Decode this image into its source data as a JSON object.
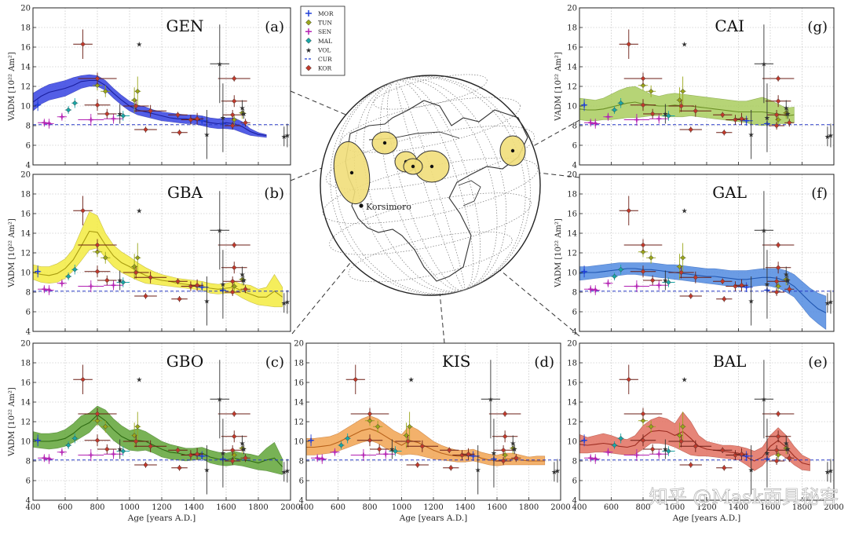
{
  "axis": {
    "ylabel": "VADM [10²² Am²]",
    "xlabel": "Age [years A.D.]",
    "x_ticks": [
      400,
      600,
      800,
      1000,
      1200,
      1400,
      1600,
      1800,
      2000
    ],
    "y_ticks": [
      4,
      6,
      8,
      10,
      12,
      14,
      16,
      18,
      20
    ],
    "xlim": [
      400,
      2000
    ],
    "ylim": [
      4,
      20
    ]
  },
  "legend": {
    "placement": "top-center",
    "entries": [
      {
        "name": "MOR",
        "color": "#1f3fd8",
        "marker": "cross"
      },
      {
        "name": "TUN",
        "color": "#9aa61a",
        "marker": "diamond"
      },
      {
        "name": "SEN",
        "color": "#b21fb2",
        "marker": "cross"
      },
      {
        "name": "MAL",
        "color": "#1aa6a6",
        "marker": "diamond"
      },
      {
        "name": "VOL",
        "color": "#2b2b2b",
        "marker": "star"
      },
      {
        "name": "CUR",
        "color": "#1f3fd8",
        "marker": "dash"
      },
      {
        "name": "KOR",
        "color": "#c0392b",
        "marker": "diamond"
      }
    ]
  },
  "globe": {
    "label": "Korsimoro"
  },
  "watermark": "知乎 @Mask面具秘客",
  "reference_vadm": 8.1,
  "points": [
    {
      "site": "MOR",
      "x": 430,
      "y": 10.1,
      "ex": 20,
      "ey": 0.6
    },
    {
      "site": "MOR",
      "x": 1450,
      "y": 8.5,
      "ex": 40,
      "ey": 0.5
    },
    {
      "site": "MOR",
      "x": 1580,
      "y": 8.2,
      "ex": 20,
      "ey": 0.5
    },
    {
      "site": "SEN",
      "x": 470,
      "y": 8.3,
      "ex": 40,
      "ey": 0.4
    },
    {
      "site": "SEN",
      "x": 500,
      "y": 8.2,
      "ex": 30,
      "ey": 0.5
    },
    {
      "site": "SEN",
      "x": 580,
      "y": 8.9,
      "ex": 30,
      "ey": 0.4
    },
    {
      "site": "SEN",
      "x": 760,
      "y": 8.6,
      "ex": 80,
      "ey": 0.6
    },
    {
      "site": "SEN",
      "x": 900,
      "y": 8.7,
      "ex": 60,
      "ey": 0.5
    },
    {
      "site": "MAL",
      "x": 620,
      "y": 9.6,
      "ex": 20,
      "ey": 0.4
    },
    {
      "site": "MAL",
      "x": 660,
      "y": 10.3,
      "ex": 20,
      "ey": 0.5
    },
    {
      "site": "MAL",
      "x": 960,
      "y": 9.0,
      "ex": 40,
      "ey": 0.5
    },
    {
      "site": "TUN",
      "x": 800,
      "y": 12.1,
      "ex": 30,
      "ey": 0.5
    },
    {
      "site": "TUN",
      "x": 850,
      "y": 11.5,
      "ex": 30,
      "ey": 0.6
    },
    {
      "site": "TUN",
      "x": 1030,
      "y": 10.6,
      "ex": 20,
      "ey": 1.3
    },
    {
      "site": "TUN",
      "x": 1050,
      "y": 11.5,
      "ex": 20,
      "ey": 1.5
    },
    {
      "site": "TUN",
      "x": 1650,
      "y": 8.6,
      "ex": 20,
      "ey": 0.5
    },
    {
      "site": "TUN",
      "x": 1700,
      "y": 9.3,
      "ex": 20,
      "ey": 0.6
    },
    {
      "site": "KOR",
      "x": 710,
      "y": 16.3,
      "ex": 60,
      "ey": 1.5
    },
    {
      "site": "KOR",
      "x": 800,
      "y": 12.8,
      "ex": 120,
      "ey": 0.6
    },
    {
      "site": "KOR",
      "x": 800,
      "y": 10.1,
      "ex": 80,
      "ey": 0.6
    },
    {
      "site": "KOR",
      "x": 860,
      "y": 9.2,
      "ex": 60,
      "ey": 0.5
    },
    {
      "site": "KOR",
      "x": 1040,
      "y": 10.0,
      "ex": 80,
      "ey": 0.6
    },
    {
      "site": "KOR",
      "x": 1130,
      "y": 9.5,
      "ex": 100,
      "ey": 0.6
    },
    {
      "site": "KOR",
      "x": 1100,
      "y": 7.6,
      "ex": 70,
      "ey": 0.3
    },
    {
      "site": "KOR",
      "x": 1300,
      "y": 9.1,
      "ex": 60,
      "ey": 0.3
    },
    {
      "site": "KOR",
      "x": 1310,
      "y": 7.3,
      "ex": 50,
      "ey": 0.3
    },
    {
      "site": "KOR",
      "x": 1380,
      "y": 8.6,
      "ex": 60,
      "ey": 0.5
    },
    {
      "site": "KOR",
      "x": 1420,
      "y": 8.7,
      "ex": 40,
      "ey": 0.6
    },
    {
      "site": "KOR",
      "x": 1650,
      "y": 12.8,
      "ex": 100,
      "ey": 0.3
    },
    {
      "site": "KOR",
      "x": 1650,
      "y": 10.5,
      "ex": 80,
      "ey": 0.6
    },
    {
      "site": "KOR",
      "x": 1640,
      "y": 9.1,
      "ex": 60,
      "ey": 0.5
    },
    {
      "site": "KOR",
      "x": 1640,
      "y": 8.0,
      "ex": 50,
      "ey": 0.4
    },
    {
      "site": "KOR",
      "x": 1720,
      "y": 8.3,
      "ex": 30,
      "ey": 0.4
    },
    {
      "site": "VOL",
      "x": 1060,
      "y": 16.3,
      "ex": 0,
      "ey": 0
    },
    {
      "site": "VOL",
      "x": 940,
      "y": 9.2,
      "ex": 0,
      "ey": 1.0
    },
    {
      "site": "VOL",
      "x": 1480,
      "y": 7.1,
      "ex": 0,
      "ey": 2.5
    },
    {
      "site": "VOL",
      "x": 1560,
      "y": 14.3,
      "ex": 60,
      "ey": 4.0
    },
    {
      "site": "VOL",
      "x": 1580,
      "y": 8.8,
      "ex": 0,
      "ey": 3.5
    },
    {
      "site": "VOL",
      "x": 1700,
      "y": 9.8,
      "ex": 0,
      "ey": 0.8
    },
    {
      "site": "VOL",
      "x": 1710,
      "y": 9.2,
      "ex": 0,
      "ey": 0.5
    },
    {
      "site": "VOL",
      "x": 1960,
      "y": 6.9,
      "ex": 0,
      "ey": 1.0
    },
    {
      "site": "VOL",
      "x": 1980,
      "y": 7.0,
      "ex": 0,
      "ey": 1.2
    }
  ],
  "panels": [
    {
      "id": "GEN",
      "letter": "(a)",
      "color": "#2d3be0",
      "line": "#1b1f9e",
      "x": [
        400,
        450,
        500,
        550,
        600,
        650,
        700,
        750,
        800,
        850,
        900,
        950,
        1000,
        1050,
        1100,
        1150,
        1200,
        1250,
        1300,
        1350,
        1400,
        1450,
        1500,
        1550,
        1600,
        1650,
        1700,
        1750,
        1800,
        1850
      ],
      "lower": [
        9.5,
        10.2,
        10.6,
        10.8,
        11.0,
        11.4,
        11.8,
        12.0,
        12.0,
        11.6,
        10.8,
        10.1,
        9.5,
        9.1,
        8.9,
        8.7,
        8.5,
        8.4,
        8.3,
        8.2,
        8.2,
        8.0,
        7.8,
        7.7,
        7.7,
        7.6,
        7.3,
        7.0,
        6.9,
        6.8
      ],
      "upper": [
        11.3,
        11.8,
        12.2,
        12.4,
        12.6,
        12.9,
        13.1,
        13.2,
        13.1,
        12.6,
        11.8,
        11.1,
        10.5,
        10.1,
        9.9,
        9.6,
        9.4,
        9.3,
        9.2,
        9.1,
        9.1,
        9.0,
        8.8,
        8.7,
        8.8,
        8.8,
        8.4,
        7.7,
        7.3,
        7.1
      ],
      "mean": [
        10.4,
        11.0,
        11.4,
        11.6,
        11.8,
        12.1,
        12.5,
        12.6,
        12.6,
        12.1,
        11.3,
        10.6,
        10.0,
        9.6,
        9.4,
        9.2,
        9.0,
        8.8,
        8.7,
        8.7,
        8.6,
        8.5,
        8.3,
        8.2,
        8.3,
        8.2,
        7.9,
        7.4,
        7.1,
        7.0
      ]
    },
    {
      "id": "GBA",
      "letter": "(b)",
      "color": "#f3ea38",
      "line": "#a89c10",
      "x": [
        400,
        450,
        500,
        550,
        600,
        650,
        700,
        750,
        800,
        850,
        900,
        950,
        1000,
        1050,
        1100,
        1150,
        1200,
        1250,
        1300,
        1350,
        1400,
        1450,
        1500,
        1550,
        1600,
        1650,
        1700,
        1750,
        1800,
        1850,
        1900,
        1950
      ],
      "lower": [
        9.3,
        9.0,
        8.9,
        9.0,
        9.4,
        10.2,
        11.2,
        12.3,
        12.5,
        11.5,
        10.6,
        10.0,
        9.6,
        9.2,
        8.9,
        8.8,
        8.7,
        8.6,
        8.5,
        8.4,
        8.3,
        8.2,
        7.9,
        7.8,
        7.9,
        7.9,
        7.4,
        7.0,
        6.7,
        6.6,
        6.5,
        6.5
      ],
      "upper": [
        10.8,
        10.6,
        10.6,
        10.9,
        11.4,
        12.4,
        14.3,
        16.2,
        15.8,
        14.0,
        12.8,
        12.1,
        11.6,
        11.0,
        10.5,
        10.1,
        9.8,
        9.6,
        9.4,
        9.3,
        9.2,
        9.1,
        8.9,
        8.8,
        8.9,
        9.1,
        8.8,
        8.7,
        8.3,
        8.5,
        9.8,
        8.5
      ],
      "mean": [
        10.0,
        9.8,
        9.7,
        9.9,
        10.4,
        11.3,
        12.7,
        14.2,
        14.1,
        12.8,
        11.7,
        11.0,
        10.6,
        10.1,
        9.7,
        9.4,
        9.2,
        9.1,
        8.9,
        8.8,
        8.7,
        8.6,
        8.4,
        8.3,
        8.4,
        8.5,
        8.1,
        7.8,
        7.5,
        7.5,
        8.1,
        7.5
      ]
    },
    {
      "id": "GBO",
      "letter": "(c)",
      "color": "#5aa12f",
      "line": "#2e6b12",
      "x": [
        400,
        450,
        500,
        550,
        600,
        650,
        700,
        750,
        800,
        850,
        900,
        950,
        1000,
        1050,
        1100,
        1150,
        1200,
        1250,
        1300,
        1350,
        1400,
        1450,
        1500,
        1550,
        1600,
        1650,
        1700,
        1750,
        1800,
        1850,
        1900,
        1950
      ],
      "lower": [
        9.4,
        9.3,
        9.2,
        9.3,
        9.5,
        9.9,
        10.4,
        10.9,
        11.8,
        11.0,
        10.1,
        9.5,
        9.1,
        9.0,
        9.1,
        8.8,
        8.4,
        8.2,
        8.1,
        8.0,
        8.1,
        8.2,
        7.8,
        7.6,
        7.5,
        7.6,
        7.5,
        7.3,
        7.1,
        7.0,
        6.8,
        6.6
      ],
      "upper": [
        11.0,
        10.8,
        10.8,
        10.9,
        11.2,
        11.8,
        12.6,
        12.9,
        13.6,
        13.2,
        12.3,
        11.6,
        11.1,
        11.3,
        11.0,
        10.5,
        10.0,
        9.7,
        9.5,
        9.3,
        9.3,
        9.4,
        9.1,
        8.9,
        8.8,
        9.0,
        8.8,
        8.7,
        8.5,
        9.3,
        9.9,
        8.2
      ],
      "mean": [
        10.2,
        10.0,
        10.0,
        10.1,
        10.3,
        10.8,
        11.5,
        11.9,
        12.7,
        12.1,
        11.2,
        10.5,
        10.1,
        10.1,
        10.0,
        9.6,
        9.2,
        8.9,
        8.8,
        8.6,
        8.7,
        8.8,
        8.4,
        8.2,
        8.1,
        8.3,
        8.1,
        8.0,
        7.8,
        8.1,
        8.3,
        7.4
      ]
    },
    {
      "id": "KIS",
      "letter": "(d)",
      "color": "#f0a04b",
      "line": "#b8621b",
      "x": [
        400,
        450,
        500,
        550,
        600,
        650,
        700,
        750,
        800,
        850,
        900,
        950,
        1000,
        1050,
        1100,
        1150,
        1200,
        1250,
        1300,
        1350,
        1400,
        1450,
        1500,
        1550,
        1600,
        1650,
        1700,
        1750,
        1800,
        1850,
        1900
      ],
      "lower": [
        8.6,
        8.6,
        8.7,
        8.8,
        9.0,
        9.3,
        9.6,
        9.9,
        10.1,
        9.8,
        9.3,
        8.9,
        8.6,
        8.7,
        8.6,
        8.4,
        8.2,
        8.1,
        8.0,
        7.9,
        7.9,
        8.0,
        7.8,
        7.6,
        7.5,
        7.6,
        7.6,
        7.6,
        7.6,
        7.6,
        7.6
      ],
      "upper": [
        10.3,
        10.3,
        10.4,
        10.5,
        10.8,
        11.3,
        11.8,
        12.3,
        12.6,
        12.3,
        11.7,
        11.1,
        10.7,
        11.6,
        11.2,
        10.6,
        10.0,
        9.6,
        9.3,
        9.1,
        9.1,
        9.2,
        8.9,
        8.7,
        8.6,
        8.8,
        8.8,
        8.6,
        8.4,
        8.5,
        8.5
      ],
      "mean": [
        9.4,
        9.4,
        9.5,
        9.6,
        9.9,
        10.3,
        10.7,
        11.1,
        11.3,
        11.0,
        10.5,
        10.0,
        9.6,
        10.1,
        9.9,
        9.5,
        9.1,
        8.8,
        8.6,
        8.5,
        8.5,
        8.6,
        8.3,
        8.1,
        8.0,
        8.2,
        8.2,
        8.1,
        8.0,
        8.0,
        8.0
      ]
    },
    {
      "id": "BAL",
      "letter": "(e)",
      "color": "#e06a5a",
      "line": "#9e2e22",
      "x": [
        400,
        450,
        500,
        550,
        600,
        650,
        700,
        750,
        800,
        850,
        900,
        950,
        1000,
        1050,
        1100,
        1150,
        1200,
        1250,
        1300,
        1350,
        1400,
        1450,
        1500,
        1550,
        1600,
        1650,
        1700,
        1750,
        1800,
        1850
      ],
      "lower": [
        8.8,
        8.8,
        8.9,
        8.9,
        8.8,
        8.7,
        8.6,
        8.7,
        9.2,
        9.8,
        9.8,
        9.7,
        9.4,
        9.0,
        8.6,
        8.5,
        8.5,
        8.4,
        8.3,
        8.2,
        8.1,
        7.6,
        7.0,
        7.5,
        8.5,
        8.8,
        8.3,
        7.6,
        7.1,
        7.0
      ],
      "upper": [
        10.7,
        10.4,
        10.6,
        10.8,
        10.6,
        10.3,
        10.2,
        10.6,
        11.6,
        12.2,
        12.5,
        12.3,
        11.8,
        13.0,
        12.0,
        10.6,
        10.0,
        9.8,
        9.6,
        9.6,
        9.5,
        9.3,
        9.0,
        9.4,
        10.6,
        11.4,
        10.6,
        9.5,
        8.6,
        8.2
      ],
      "mean": [
        9.7,
        9.6,
        9.7,
        9.8,
        9.7,
        9.5,
        9.4,
        9.6,
        10.4,
        11.0,
        11.1,
        11.0,
        10.6,
        11.0,
        10.3,
        9.5,
        9.2,
        9.1,
        9.0,
        8.9,
        8.8,
        8.4,
        8.0,
        8.4,
        9.5,
        10.1,
        9.4,
        8.5,
        7.8,
        7.6
      ]
    },
    {
      "id": "GAL",
      "letter": "(f)",
      "color": "#4b86df",
      "line": "#1f55b0",
      "x": [
        400,
        450,
        500,
        550,
        600,
        650,
        700,
        750,
        800,
        850,
        900,
        950,
        1000,
        1050,
        1100,
        1150,
        1200,
        1250,
        1300,
        1350,
        1400,
        1450,
        1500,
        1550,
        1600,
        1650,
        1700,
        1750,
        1800,
        1850,
        1900,
        1950
      ],
      "lower": [
        9.2,
        9.3,
        9.4,
        9.5,
        9.6,
        9.7,
        9.8,
        9.8,
        9.7,
        9.6,
        9.5,
        9.4,
        9.3,
        9.2,
        9.1,
        9.0,
        8.9,
        8.8,
        8.7,
        8.6,
        8.5,
        8.5,
        8.6,
        8.7,
        8.6,
        8.4,
        8.0,
        7.5,
        6.5,
        5.5,
        4.8,
        4.2
      ],
      "upper": [
        10.6,
        10.6,
        10.7,
        10.8,
        10.9,
        11.0,
        11.0,
        11.0,
        11.0,
        11.0,
        10.9,
        10.8,
        10.8,
        10.7,
        10.6,
        10.5,
        10.4,
        10.4,
        10.3,
        10.2,
        10.2,
        10.2,
        10.3,
        10.4,
        10.4,
        10.4,
        10.2,
        9.8,
        9.1,
        8.4,
        7.9,
        7.6
      ],
      "mean": [
        9.9,
        10.0,
        10.0,
        10.1,
        10.2,
        10.3,
        10.4,
        10.4,
        10.3,
        10.3,
        10.2,
        10.1,
        10.0,
        9.9,
        9.8,
        9.7,
        9.6,
        9.6,
        9.5,
        9.4,
        9.3,
        9.3,
        9.4,
        9.5,
        9.5,
        9.4,
        9.1,
        8.6,
        7.8,
        7.0,
        6.3,
        5.9
      ]
    },
    {
      "id": "CAI",
      "letter": "(g)",
      "color": "#a6cb58",
      "line": "#6a8f24",
      "x": [
        400,
        450,
        500,
        550,
        600,
        650,
        700,
        750,
        800,
        850,
        900,
        950,
        1000,
        1050,
        1100,
        1150,
        1200,
        1250,
        1300,
        1350,
        1400,
        1450,
        1500,
        1550,
        1600,
        1650,
        1700,
        1750
      ],
      "lower": [
        8.6,
        8.5,
        8.5,
        8.6,
        8.6,
        8.7,
        8.8,
        8.8,
        8.9,
        9.0,
        9.0,
        8.9,
        8.9,
        8.9,
        9.0,
        8.9,
        8.8,
        8.7,
        8.6,
        8.5,
        8.4,
        8.3,
        8.1,
        8.0,
        8.1,
        8.2,
        8.2,
        8.3
      ],
      "upper": [
        10.8,
        10.7,
        10.6,
        10.8,
        11.2,
        11.6,
        11.9,
        12.0,
        11.6,
        11.2,
        11.0,
        11.2,
        11.3,
        11.2,
        11.1,
        11.0,
        10.9,
        10.8,
        10.7,
        10.6,
        10.5,
        10.5,
        10.7,
        10.9,
        10.6,
        10.2,
        9.8,
        9.9
      ],
      "mean": [
        9.7,
        9.6,
        9.6,
        9.7,
        9.9,
        10.1,
        10.3,
        10.4,
        10.2,
        10.1,
        10.0,
        10.0,
        10.1,
        10.0,
        10.0,
        9.9,
        9.8,
        9.7,
        9.6,
        9.5,
        9.4,
        9.4,
        9.4,
        9.4,
        9.3,
        9.2,
        9.0,
        9.1
      ]
    }
  ]
}
